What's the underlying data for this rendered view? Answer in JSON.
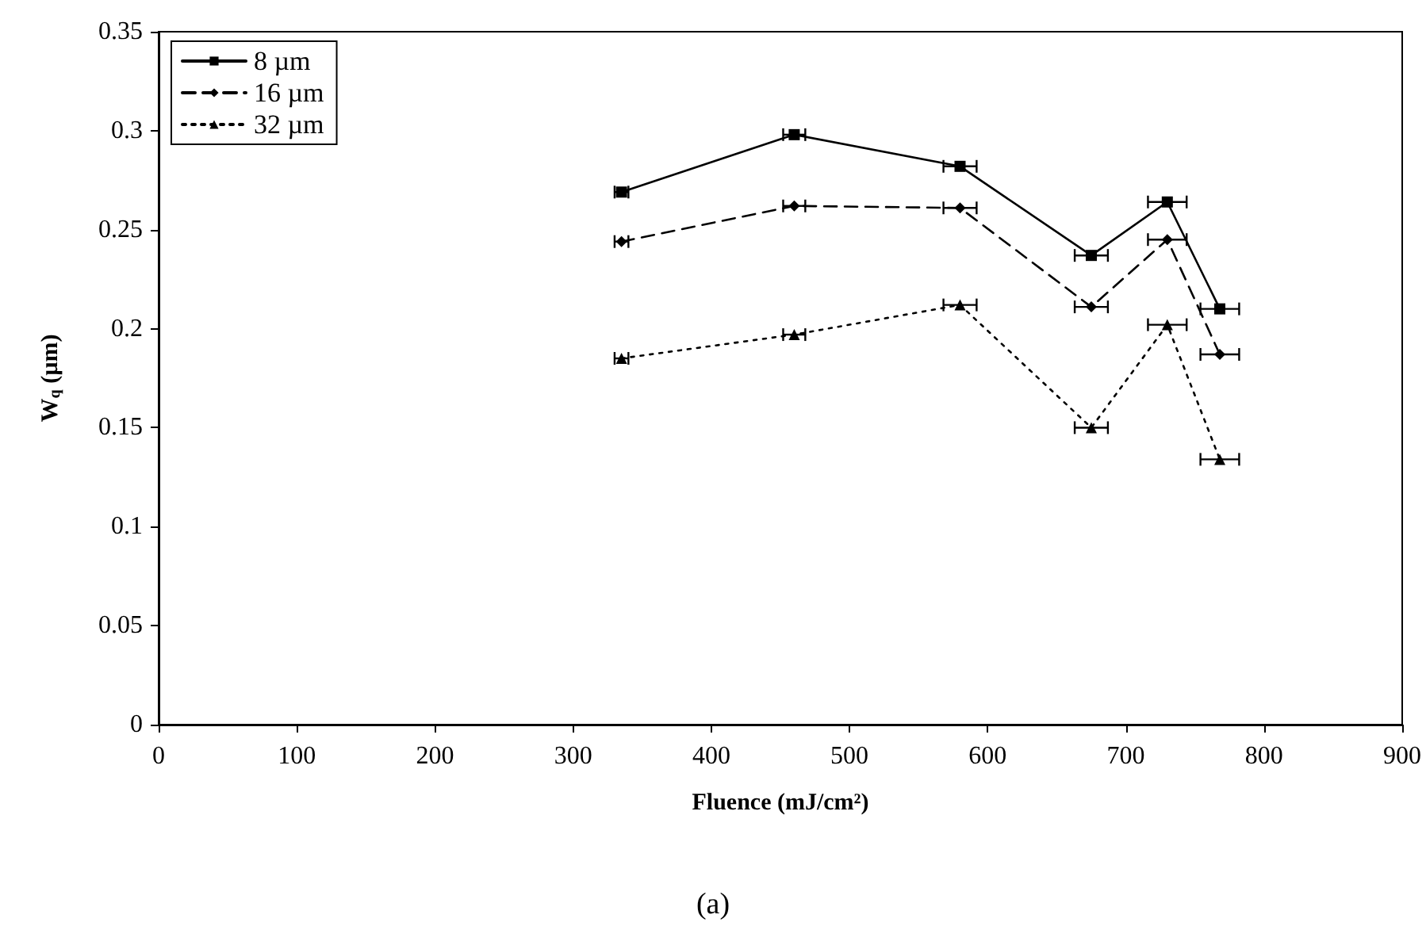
{
  "chart_data": {
    "type": "line",
    "xlabel": "Fluence (mJ/cm²)",
    "ylabel": "W$_{q}$ (µm)",
    "x": [
      335,
      460,
      580,
      675,
      730,
      768
    ],
    "series": [
      {
        "name": "8 µm",
        "color": "#000000",
        "marker": "square",
        "line_style": "solid",
        "values": [
          0.269,
          0.298,
          0.282,
          0.237,
          0.264,
          0.21
        ],
        "xerrors": [
          5,
          8,
          12,
          12,
          14,
          14
        ]
      },
      {
        "name": "16 µm",
        "color": "#000000",
        "marker": "diamond",
        "line_style": "dashed",
        "values": [
          0.244,
          0.262,
          0.261,
          0.211,
          0.245,
          0.187
        ],
        "xerrors": [
          5,
          8,
          12,
          12,
          14,
          14
        ]
      },
      {
        "name": "32 µm",
        "color": "#000000",
        "marker": "triangle",
        "line_style": "dotted",
        "values": [
          0.185,
          0.197,
          0.212,
          0.15,
          0.202,
          0.134
        ],
        "xerrors": [
          5,
          8,
          12,
          12,
          14,
          14
        ]
      }
    ],
    "xlim": [
      0,
      900
    ],
    "xticks": [
      0,
      100,
      200,
      300,
      400,
      500,
      600,
      700,
      800,
      900
    ],
    "ylim": [
      0,
      0.35
    ],
    "yticks": [
      0,
      0.05,
      0.1,
      0.15,
      0.2,
      0.25,
      0.3,
      0.35
    ],
    "grid": false,
    "legend": "top left",
    "annotations": [
      "(a)"
    ]
  }
}
